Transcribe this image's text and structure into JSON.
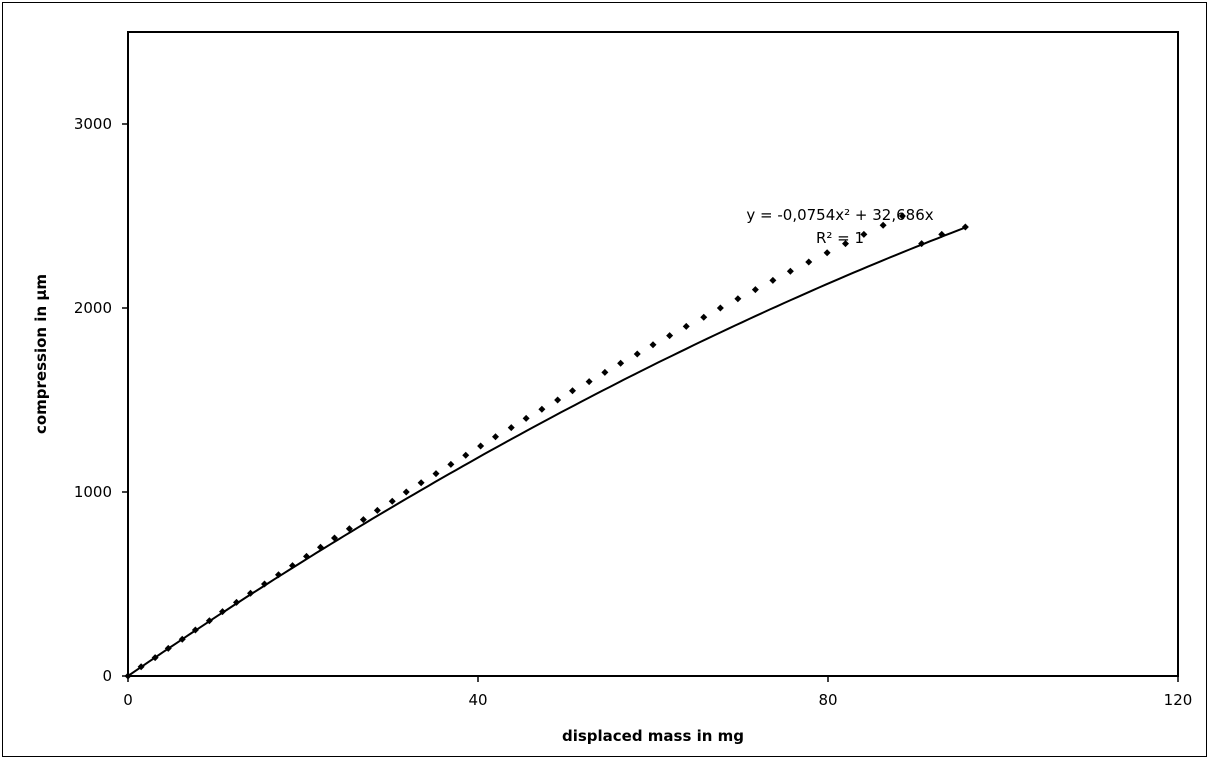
{
  "chart_data": {
    "type": "scatter",
    "xlabel": "displaced mass in mg",
    "ylabel": "compression in µm",
    "xlim": [
      0,
      120
    ],
    "ylim": [
      0,
      3500
    ],
    "x_ticks": [
      0,
      40,
      80,
      120
    ],
    "y_ticks": [
      0,
      1000,
      2000,
      3000
    ],
    "grid": false,
    "legend": "none",
    "colors": {
      "series": "#000000",
      "frame": "#000000"
    },
    "trendline": {
      "type": "polynomial",
      "a2": -0.0754,
      "a1": 32.686,
      "a0": 0,
      "equation_text": "y = -0,0754x² + 32,686x",
      "r2_text": "R² = 1"
    },
    "series": [
      {
        "x": [
          0,
          1.5,
          3.1,
          4.6,
          6.2,
          7.7,
          9.3,
          10.8,
          12.4,
          14.0,
          15.6,
          17.2,
          18.8,
          20.4,
          22.0,
          23.6,
          25.3,
          26.9,
          28.5,
          30.2,
          31.8,
          33.5,
          35.2,
          36.9,
          38.6,
          40.3,
          42.0,
          43.8,
          45.5,
          47.3,
          49.1,
          50.8,
          52.7,
          54.5,
          56.3,
          58.2,
          60.0,
          61.9,
          63.8,
          65.8,
          67.7,
          69.7,
          71.7,
          73.7,
          75.7,
          77.8,
          79.9,
          82.0,
          84.1,
          86.3,
          88.5,
          90.7,
          93.0,
          95.7
        ],
        "y": [
          0,
          50,
          100,
          150,
          200,
          250,
          300,
          350,
          400,
          450,
          500,
          550,
          600,
          650,
          700,
          750,
          800,
          850,
          900,
          950,
          1000,
          1050,
          1100,
          1150,
          1200,
          1250,
          1300,
          1350,
          1400,
          1450,
          1500,
          1550,
          1600,
          1650,
          1700,
          1750,
          1800,
          1850,
          1900,
          1950,
          2000,
          2050,
          2100,
          2150,
          2200,
          2250,
          2300,
          2350,
          2400,
          2450,
          2500,
          2350,
          2400,
          2440
        ]
      }
    ]
  }
}
